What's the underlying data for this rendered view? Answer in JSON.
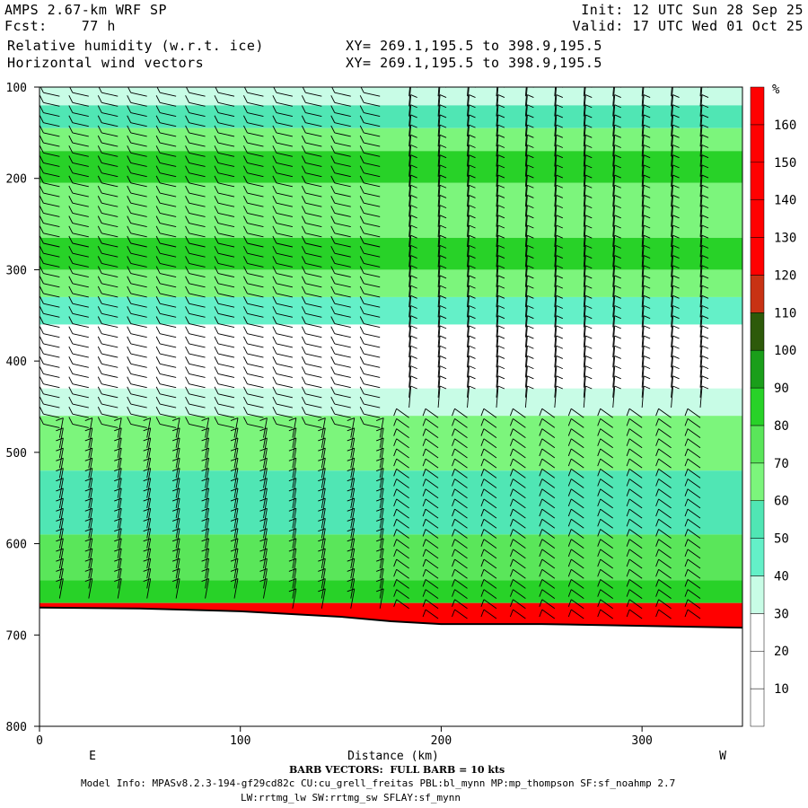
{
  "header": {
    "model": "AMPS 2.67-km WRF SP",
    "fcst": "Fcst:    77 h",
    "field1": "Relative humidity (w.r.t. ice)",
    "field2": "Horizontal wind vectors",
    "init": "Init: 12 UTC Sun 28 Sep 25",
    "valid": "Valid: 17 UTC Wed 01 Oct 25",
    "xy1": "XY= 269.1,195.5 to 398.9,195.5",
    "xy2": "XY= 269.1,195.5 to 398.9,195.5"
  },
  "footer": {
    "barb": "BARB VECTORS:  FULL BARB = 10 kts",
    "model_info": "Model Info: MPASv8.2.3-194-gf29cd82c CU:cu_grell_freitas PBL:bl_mynn MP:mp_thompson SF:sf_noahmp 2.7",
    "model_info2": "LW:rrtmg_lw SW:rrtmg_sw SFLAY:sf_mynn"
  },
  "chart_data": {
    "type": "heatmap",
    "title": "Relative humidity (w.r.t. ice)",
    "xlabel": "Distance (km)",
    "x_left_label": "E",
    "x_right_label": "W",
    "xlim": [
      0,
      350
    ],
    "ylim": [
      800,
      100
    ],
    "x_ticks": [
      0,
      100,
      200,
      300
    ],
    "y_ticks": [
      100,
      200,
      300,
      400,
      500,
      600,
      700,
      800
    ],
    "colorbar_unit": "%",
    "colorbar_levels": [
      {
        "lo": 0,
        "hi": 10,
        "color": "#ffffff"
      },
      {
        "lo": 10,
        "hi": 20,
        "color": "#ffffff"
      },
      {
        "lo": 20,
        "hi": 30,
        "color": "#ffffff"
      },
      {
        "lo": 30,
        "hi": 40,
        "color": "#c8fce6"
      },
      {
        "lo": 40,
        "hi": 50,
        "color": "#64f0c8"
      },
      {
        "lo": 50,
        "hi": 60,
        "color": "#50e6b4"
      },
      {
        "lo": 60,
        "hi": 70,
        "color": "#7cf57c"
      },
      {
        "lo": 70,
        "hi": 80,
        "color": "#5ae65a"
      },
      {
        "lo": 80,
        "hi": 90,
        "color": "#28d228"
      },
      {
        "lo": 90,
        "hi": 100,
        "color": "#1a9e1a"
      },
      {
        "lo": 100,
        "hi": 110,
        "color": "#2d5a0a"
      },
      {
        "lo": 110,
        "hi": 120,
        "color": "#c83214"
      },
      {
        "lo": 120,
        "hi": 130,
        "color": "#ff0000"
      },
      {
        "lo": 130,
        "hi": 140,
        "color": "#ff0000"
      },
      {
        "lo": 140,
        "hi": 150,
        "color": "#ff0000"
      },
      {
        "lo": 150,
        "hi": 160,
        "color": "#ff0000"
      },
      {
        "lo": 160,
        "hi": 170,
        "color": "#ff0000"
      }
    ],
    "colorbar_labels": [
      10,
      20,
      30,
      40,
      50,
      60,
      70,
      80,
      90,
      100,
      110,
      120,
      130,
      140,
      150,
      160
    ],
    "terrain_pressure": [
      {
        "x": 0,
        "p": 670
      },
      {
        "x": 50,
        "p": 671
      },
      {
        "x": 100,
        "p": 674
      },
      {
        "x": 150,
        "p": 680
      },
      {
        "x": 175,
        "p": 685
      },
      {
        "x": 200,
        "p": 688
      },
      {
        "x": 250,
        "p": 688
      },
      {
        "x": 300,
        "p": 690
      },
      {
        "x": 350,
        "p": 692
      }
    ],
    "rh_bands": [
      {
        "p_top": 100,
        "p_bot": 120,
        "rh": 35
      },
      {
        "p_top": 120,
        "p_bot": 145,
        "rh": 55
      },
      {
        "p_top": 145,
        "p_bot": 170,
        "rh": 65
      },
      {
        "p_top": 170,
        "p_bot": 205,
        "rh": 85
      },
      {
        "p_top": 205,
        "p_bot": 265,
        "rh": 65
      },
      {
        "p_top": 265,
        "p_bot": 300,
        "rh": 85
      },
      {
        "p_top": 300,
        "p_bot": 330,
        "rh": 65
      },
      {
        "p_top": 330,
        "p_bot": 360,
        "rh": 45
      },
      {
        "p_top": 360,
        "p_bot": 430,
        "rh": 25
      },
      {
        "p_top": 430,
        "p_bot": 460,
        "rh": 35
      },
      {
        "p_top": 460,
        "p_bot": 520,
        "rh": 65
      },
      {
        "p_top": 520,
        "p_bot": 590,
        "rh": 55
      },
      {
        "p_top": 590,
        "p_bot": 640,
        "rh": 75
      },
      {
        "p_top": 640,
        "p_bot": 665,
        "rh": 85
      },
      {
        "p_top": 665,
        "p_bot": 700,
        "rh": 150
      }
    ]
  }
}
